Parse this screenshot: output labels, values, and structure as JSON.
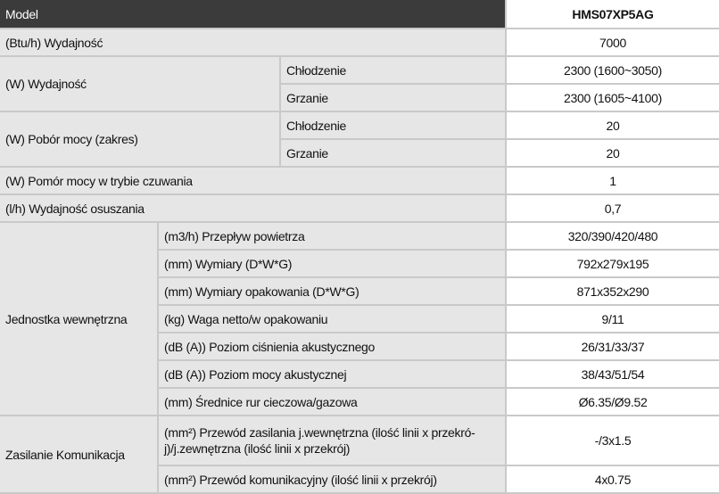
{
  "header": {
    "label": "Model",
    "value": "HMS07XP5AG"
  },
  "groups": [
    {
      "label": "(Btu/h) Wydajność",
      "rows": [
        {
          "value": "7000"
        }
      ]
    },
    {
      "label": "(W) Wydajność",
      "rows": [
        {
          "label": [
            "Chłodzenie"
          ],
          "value": "2300 (1600~3050)"
        },
        {
          "label": [
            "Grzanie"
          ],
          "value": "2300 (1605~4100)"
        }
      ]
    },
    {
      "label": "(W) Pobór mocy (zakres)",
      "rows": [
        {
          "label": [
            "Chłodzenie"
          ],
          "value": "20"
        },
        {
          "label": [
            "Grzanie"
          ],
          "value": "20"
        }
      ]
    },
    {
      "label": "(W) Pomór mocy w trybie czuwania",
      "rows": [
        {
          "value": "1"
        }
      ]
    },
    {
      "label": "(l/h) Wydajność osuszania",
      "rows": [
        {
          "value": "0,7"
        }
      ]
    },
    {
      "label": "Jednostka wewnętrzna",
      "rows": [
        {
          "label": [
            "(m3/h) Przepływ powietrza"
          ],
          "value": "320/390/420/480"
        },
        {
          "label": [
            "(mm) Wymiary (D*W*G)"
          ],
          "value": "792x279x195"
        },
        {
          "label": [
            "(mm) Wymiary opakowania (D*W*G)"
          ],
          "value": "871x352x290"
        },
        {
          "label": [
            "(kg) Waga netto/w opakowaniu"
          ],
          "value": "9/11"
        },
        {
          "label": [
            "(dB (A)) Poziom ciśnienia akustycznego"
          ],
          "value": "26/31/33/37"
        },
        {
          "label": [
            "(dB (A)) Poziom mocy akustycznej"
          ],
          "value": "38/43/51/54"
        },
        {
          "label": [
            "(mm) Średnice rur cieczowa/gazowa"
          ],
          "value": "Ø6.35/Ø9.52"
        }
      ]
    },
    {
      "label": "Zasilanie Komunikacja",
      "rows": [
        {
          "label": [
            "(mm²) Przewód zasilania j.wewnętrzna (ilość linii x przekró-",
            "j)/j.zewnętrzna (ilość linii x przekrój)"
          ],
          "value": "-/3x1.5"
        },
        {
          "label": [
            "(mm²) Przewód komunikacyjny (ilość linii x przekrój)"
          ],
          "value": "4x0.75"
        }
      ]
    }
  ]
}
